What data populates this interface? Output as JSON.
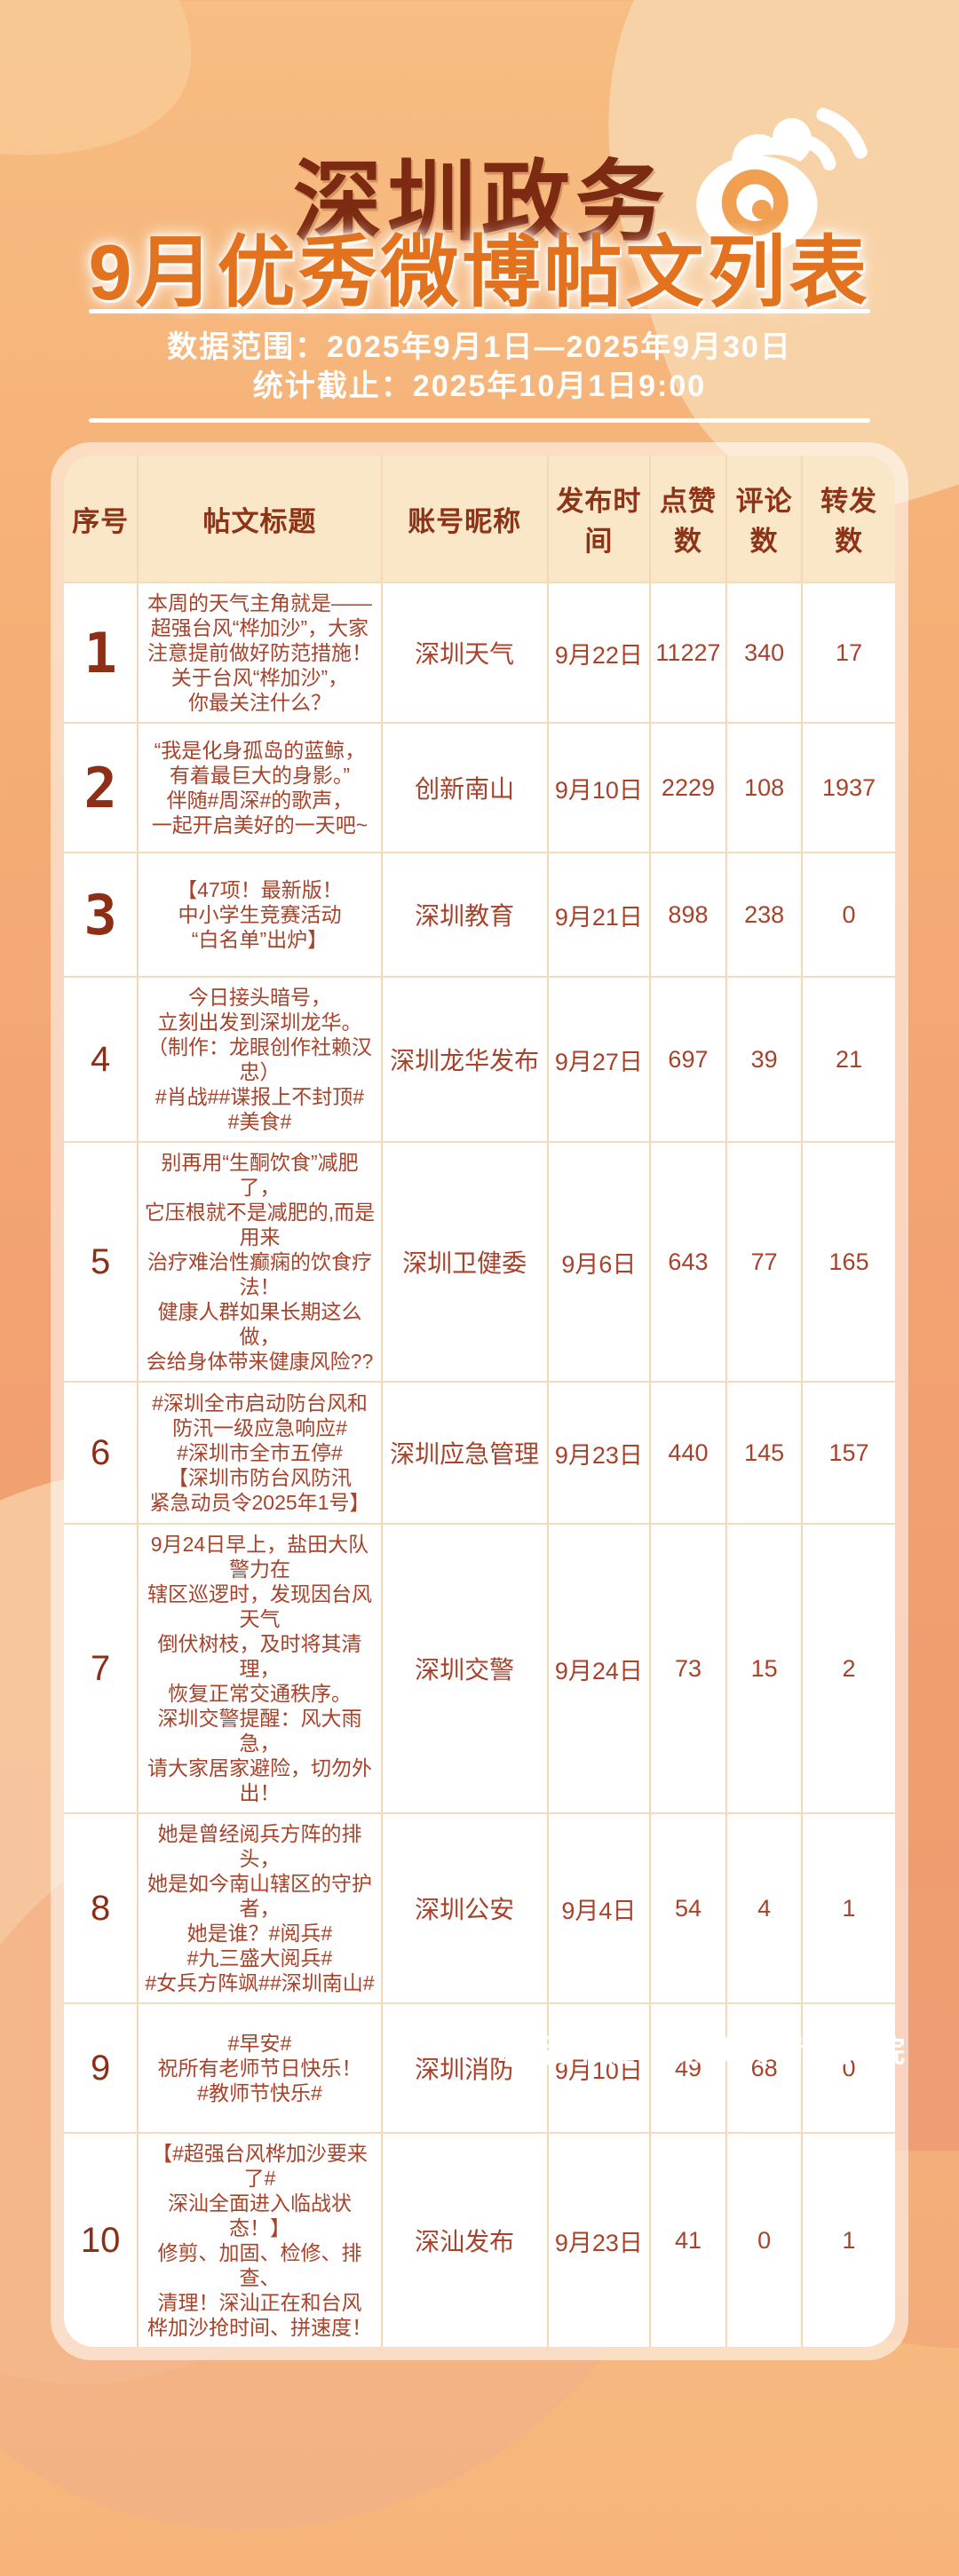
{
  "colors": {
    "background_top": "#f7bd82",
    "background_bottom": "#ee9a70",
    "brand_text": "#7c2a12",
    "accent_orange": "#e2721d",
    "table_header_bg": "#fae7c7",
    "table_text": "#a7432a",
    "header_text": "#8c3318",
    "white": "#ffffff"
  },
  "header": {
    "brand": "深圳政务",
    "logo_icon": "weibo-icon",
    "title": "9月优秀微博帖文列表"
  },
  "meta": {
    "data_range": "数据范围：2025年9月1日—2025年9月30日",
    "cutoff": "统计截止：2025年10月1日9:00"
  },
  "table": {
    "columns": [
      "序号",
      "帖文标题",
      "账号昵称",
      "发布时间",
      "点赞数",
      "评论数",
      "转发数"
    ],
    "rows": [
      {
        "index": "1",
        "featured": true,
        "title": "本周的天气主角就是——\n超强台风“桦加沙”，大家\n注意提前做好防范措施！\n关于台风“桦加沙”，\n你最关注什么？",
        "account": "深圳天气",
        "date": "9月22日",
        "likes": "11227",
        "comments": "340",
        "reposts": "17"
      },
      {
        "index": "2",
        "featured": true,
        "title": "“我是化身孤岛的蓝鲸，\n有着最巨大的身影。”\n伴随#周深#的歌声，\n一起开启美好的一天吧~",
        "account": "创新南山",
        "date": "9月10日",
        "likes": "2229",
        "comments": "108",
        "reposts": "1937"
      },
      {
        "index": "3",
        "featured": true,
        "title": "【47项！最新版！\n中小学生竞赛活动\n“白名单”出炉】",
        "account": "深圳教育",
        "date": "9月21日",
        "likes": "898",
        "comments": "238",
        "reposts": "0"
      },
      {
        "index": "4",
        "featured": false,
        "title": "今日接头暗号，\n立刻出发到深圳龙华。\n（制作：龙眼创作社赖汉忠）\n#肖战##谍报上不封顶#\n#美食#",
        "account": "深圳龙华发布",
        "date": "9月27日",
        "likes": "697",
        "comments": "39",
        "reposts": "21"
      },
      {
        "index": "5",
        "featured": false,
        "title": "别再用“生酮饮食”减肥了，\n它压根就不是减肥的,而是用来\n治疗难治性癫痫的饮食疗法！\n健康人群如果长期这么做，\n会给身体带来健康风险??",
        "account": "深圳卫健委",
        "date": "9月6日",
        "likes": "643",
        "comments": "77",
        "reposts": "165"
      },
      {
        "index": "6",
        "featured": false,
        "title": "#深圳全市启动防台风和\n防汛一级应急响应#\n#深圳市全市五停#\n【深圳市防台风防汛\n紧急动员令2025年1号】",
        "account": "深圳应急管理",
        "date": "9月23日",
        "likes": "440",
        "comments": "145",
        "reposts": "157"
      },
      {
        "index": "7",
        "featured": false,
        "title": "9月24日早上，盐田大队警力在\n辖区巡逻时，发现因台风天气\n倒伏树枝，及时将其清理，\n恢复正常交通秩序。\n深圳交警提醒：风大雨急，\n请大家居家避险，切勿外出！",
        "account": "深圳交警",
        "date": "9月24日",
        "likes": "73",
        "comments": "15",
        "reposts": "2"
      },
      {
        "index": "8",
        "featured": false,
        "title": "她是曾经阅兵方阵的排头，\n她是如今南山辖区的守护者，\n她是谁？#阅兵#\n#九三盛大阅兵#\n#女兵方阵飒##深圳南山#",
        "account": "深圳公安",
        "date": "9月4日",
        "likes": "54",
        "comments": "4",
        "reposts": "1"
      },
      {
        "index": "9",
        "featured": false,
        "title": "#早安#\n祝所有老师节日快乐！\n#教师节快乐#",
        "account": "深圳消防",
        "date": "9月10日",
        "likes": "49",
        "comments": "68",
        "reposts": "0"
      },
      {
        "index": "10",
        "featured": false,
        "title": "【#超强台风桦加沙要来了#\n深汕全面进入临战状态！】\n修剪、加固、检修、排查、\n清理！深汕正在和台风\n桦加沙抢时间、拼速度！",
        "account": "深汕发布",
        "date": "9月23日",
        "likes": "41",
        "comments": "0",
        "reposts": "1"
      }
    ],
    "row_min_heights": [
      152,
      144,
      138,
      168,
      162,
      158,
      176,
      146,
      144,
      168
    ]
  },
  "footer": {
    "credit": "出品单位 | 深圳舆情研究院"
  }
}
